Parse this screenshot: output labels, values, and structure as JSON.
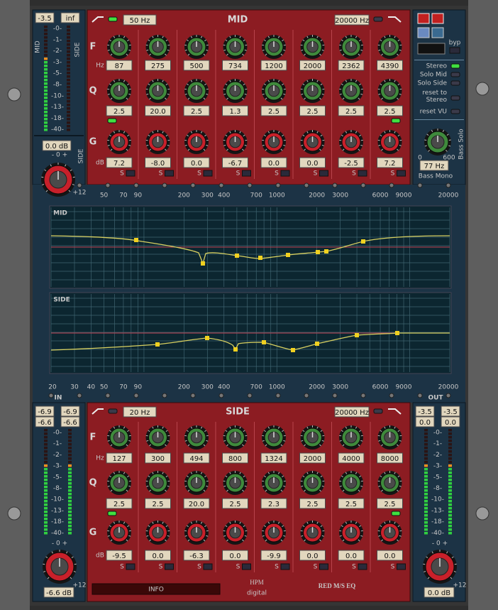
{
  "mid_meter": {
    "readouts": [
      "-3.5",
      "inf"
    ],
    "left_label": "MID",
    "right_label": "SIDE",
    "scale": [
      "-0-",
      "-1-",
      "-2-",
      "-3-",
      "-5-",
      "-8-",
      "-10-",
      "-13-",
      "-18-",
      "-40-"
    ],
    "gain": "0.0 dB",
    "knob_scale": "- 0 +",
    "knob_label": "SIDE",
    "knob_max": "+12"
  },
  "mid_eq": {
    "low_cut": "50 Hz",
    "title": "MID",
    "high_cut": "20000 Hz",
    "row_labels": {
      "f": "F",
      "hz": "Hz",
      "q": "Q",
      "g": "G",
      "db": "dB"
    },
    "solo": "S",
    "freq": [
      "87",
      "275",
      "500",
      "734",
      "1200",
      "2000",
      "2362",
      "4390"
    ],
    "q": [
      "2.5",
      "20.0",
      "2.5",
      "1.3",
      "2.5",
      "2.5",
      "2.5",
      "2.5"
    ],
    "gain": [
      "7.2",
      "-8.0",
      "0.0",
      "-6.7",
      "0.0",
      "0.0",
      "-2.5",
      "7.2"
    ]
  },
  "controls": {
    "byp": "byp",
    "options": [
      "Stereo",
      "Solo Mid",
      "Solo Side",
      "reset to Stereo",
      "reset VU"
    ],
    "bass_min": "0",
    "bass_max": "600",
    "bass_solo": "Bass Solo",
    "bass_freq": "77 Hz",
    "bass_mono": "Bass Mono"
  },
  "graph": {
    "top_axis": [
      50,
      70,
      90,
      200,
      300,
      400,
      700,
      1000,
      2000,
      3000,
      6000,
      9000,
      20000
    ],
    "mid_label": "MID",
    "side_label": "SIDE",
    "bottom_axis": [
      20,
      30,
      40,
      50,
      70,
      90,
      200,
      300,
      400,
      700,
      1000,
      2000,
      3000,
      6000,
      9000,
      20000
    ],
    "in": "IN",
    "out": "OUT"
  },
  "side_eq": {
    "low_cut": "20 Hz",
    "title": "SIDE",
    "high_cut": "20000 Hz",
    "row_labels": {
      "f": "F",
      "hz": "Hz",
      "q": "Q",
      "g": "G",
      "db": "dB"
    },
    "solo": "S",
    "freq": [
      "127",
      "300",
      "494",
      "800",
      "1324",
      "2000",
      "4000",
      "8000"
    ],
    "q": [
      "2.5",
      "2.5",
      "20.0",
      "2.5",
      "2.3",
      "2.5",
      "2.5",
      "2.5"
    ],
    "gain": [
      "-9.5",
      "0.0",
      "-6.3",
      "0.0",
      "-9.9",
      "0.0",
      "0.0",
      "0.0"
    ]
  },
  "in_meter": {
    "readouts": [
      "-6.9",
      "-6.9",
      "-6.6",
      "-6.6"
    ],
    "scale": [
      "-0-",
      "-1-",
      "-2-",
      "-3-",
      "-5-",
      "-8-",
      "-10-",
      "-13-",
      "-18-",
      "-40-"
    ],
    "knob_scale": "- 0 +",
    "knob_max": "+12",
    "gain": "-6.6 dB"
  },
  "out_meter": {
    "readouts": [
      "-3.5",
      "-3.5",
      "0.0",
      "0.0"
    ],
    "scale": [
      "-0-",
      "-1-",
      "-2-",
      "-3-",
      "-5-",
      "-8-",
      "-10-",
      "-13-",
      "-18-",
      "-40-"
    ],
    "knob_scale": "- 0 +",
    "knob_max": "+12",
    "gain": "0.0 dB"
  },
  "footer": {
    "info": "INFO",
    "brand": "HPM",
    "brand_sub": "digital",
    "product": "RED M/S EQ"
  }
}
